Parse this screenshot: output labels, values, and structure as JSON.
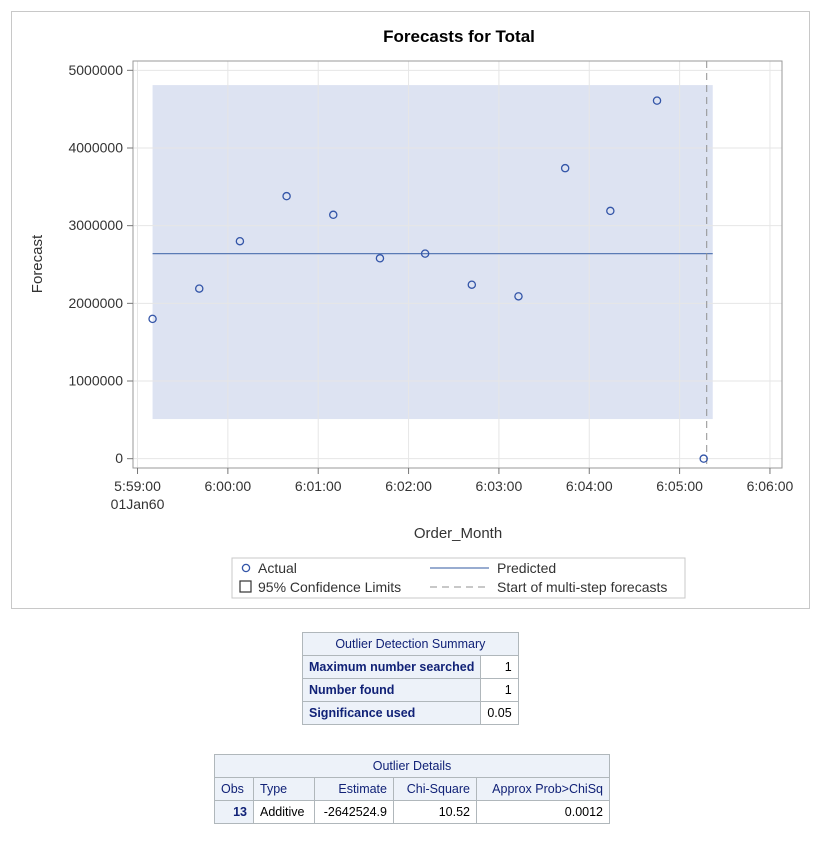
{
  "chart_data": {
    "type": "scatter",
    "title": "Forecasts for Total",
    "xlabel": "Order_Month",
    "ylabel": "Forecast",
    "x_ticks": [
      "5:59:00",
      "6:00:00",
      "6:01:00",
      "6:02:00",
      "6:03:00",
      "6:04:00",
      "6:05:00",
      "6:06:00"
    ],
    "x_tick_sublabel": "01Jan60",
    "x_range_seconds_after_0559": [
      -3,
      428
    ],
    "y_ticks": [
      0,
      1000000,
      2000000,
      3000000,
      4000000,
      5000000
    ],
    "ylim": [
      -120000,
      5120000
    ],
    "grid": true,
    "series": [
      {
        "name": "Actual",
        "style": "open-circle",
        "x": [
          "5:59:10",
          "5:59:41",
          "6:00:08",
          "6:00:39",
          "6:01:10",
          "6:01:41",
          "6:02:11",
          "6:02:42",
          "6:03:13",
          "6:03:44",
          "6:04:14",
          "6:04:45",
          "6:05:16"
        ],
        "values": [
          1800000,
          2190000,
          2800000,
          3380000,
          3140000,
          2580000,
          2640000,
          2240000,
          2090000,
          3740000,
          3190000,
          4610000,
          0
        ]
      },
      {
        "name": "Predicted",
        "style": "line",
        "x": [
          "5:59:10",
          "6:05:22"
        ],
        "values": [
          2640000,
          2640000
        ]
      }
    ],
    "confidence_band": {
      "name": "95% Confidence Limits",
      "x": [
        "5:59:10",
        "6:05:22"
      ],
      "lower": 510000,
      "upper": 4810000
    },
    "reference_line": {
      "name": "Start of multi-step forecasts",
      "x": "6:05:18",
      "style": "dashed"
    },
    "legend": {
      "placement": "bottom",
      "items": [
        "Actual",
        "Predicted",
        "95% Confidence Limits",
        "Start of multi-step forecasts"
      ]
    },
    "colors": {
      "marker": "#3355a8",
      "line": "#5a7bb5",
      "band": "#dde3f2",
      "grid": "#e6e6e6",
      "refline": "#909090"
    }
  },
  "outlier_summary": {
    "caption": "Outlier Detection Summary",
    "rows": [
      {
        "label": "Maximum number searched",
        "value": "1"
      },
      {
        "label": "Number found",
        "value": "1"
      },
      {
        "label": "Significance used",
        "value": "0.05"
      }
    ]
  },
  "outlier_details": {
    "caption": "Outlier Details",
    "headers": [
      "Obs",
      "Type",
      "Estimate",
      "Chi-Square",
      "Approx Prob>ChiSq"
    ],
    "rows": [
      [
        "13",
        "Additive",
        "-2642524.9",
        "10.52",
        "0.0012"
      ]
    ]
  }
}
